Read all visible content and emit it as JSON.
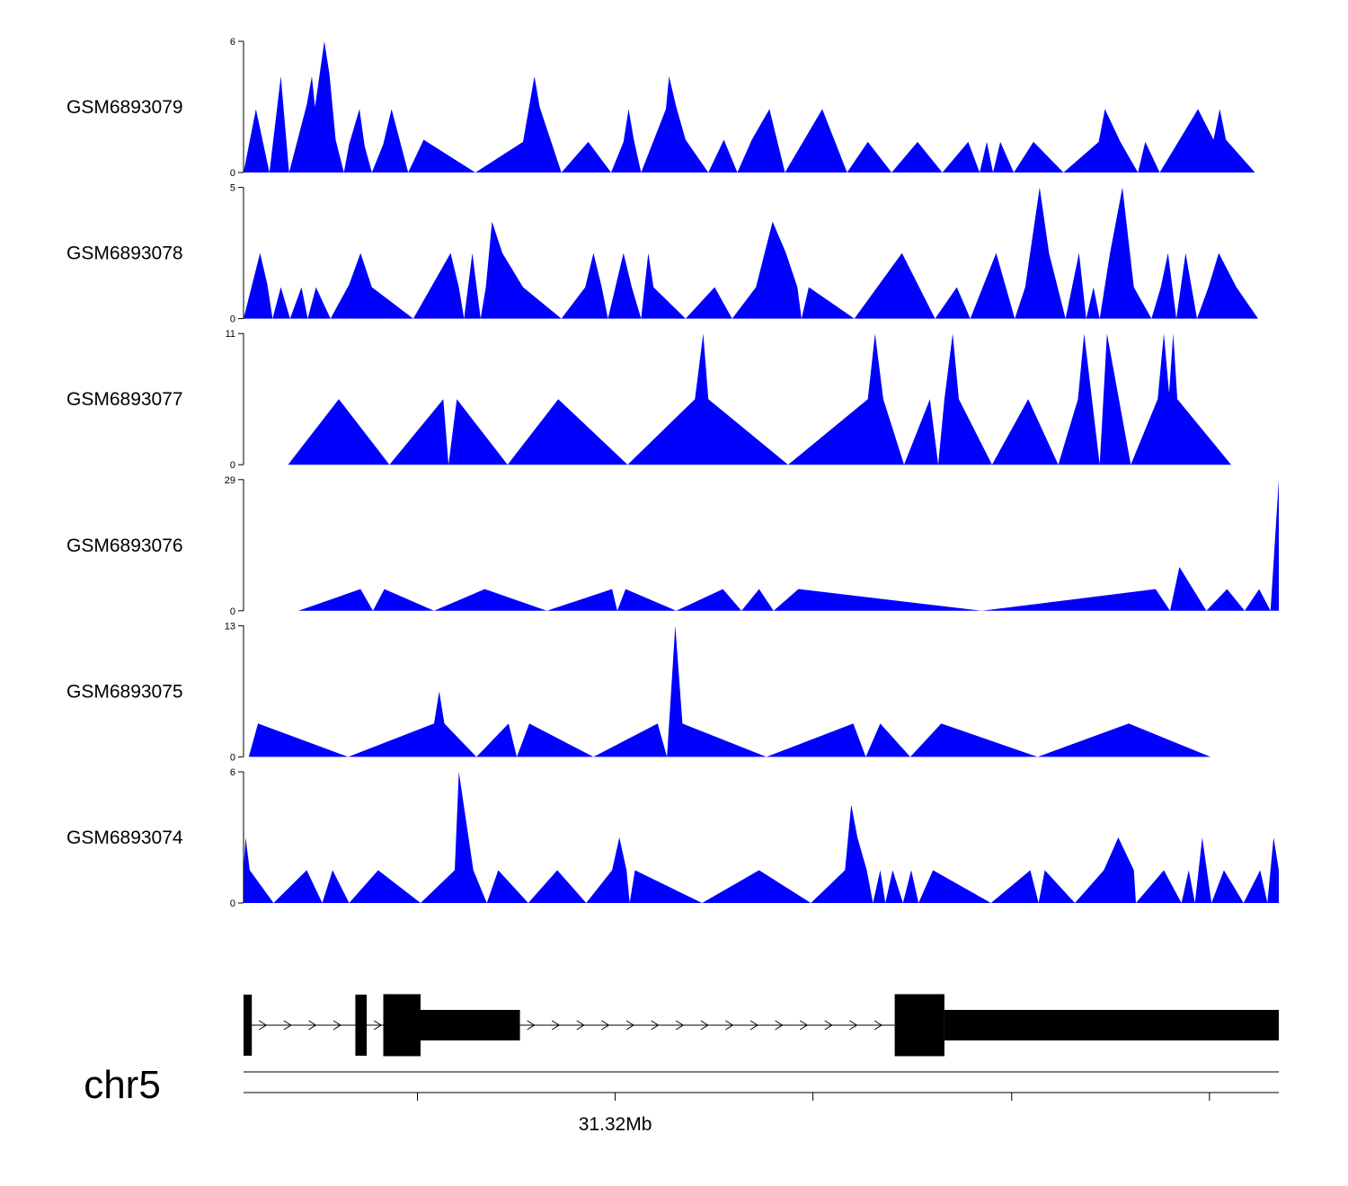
{
  "chart_data": {
    "type": "area",
    "chromosome": "chr5",
    "axis": {
      "tick_label": "31.32Mb"
    },
    "colors": {
      "coverage": "#0000ff",
      "gene_model": "#000000"
    },
    "tracks": [
      {
        "name": "GSM6893079",
        "ylim": [
          0,
          6
        ],
        "points": [
          [
            0,
            0
          ],
          [
            0.012,
            2.9
          ],
          [
            0.025,
            0
          ],
          [
            0.036,
            4.4
          ],
          [
            0.044,
            0
          ],
          [
            0.061,
            3.1
          ],
          [
            0.066,
            4.4
          ],
          [
            0.069,
            3.0
          ],
          [
            0.078,
            6.0
          ],
          [
            0.083,
            4.5
          ],
          [
            0.089,
            1.5
          ],
          [
            0.097,
            0
          ],
          [
            0.102,
            1.3
          ],
          [
            0.112,
            2.9
          ],
          [
            0.117,
            1.2
          ],
          [
            0.124,
            0
          ],
          [
            0.135,
            1.3
          ],
          [
            0.143,
            2.9
          ],
          [
            0.159,
            0
          ],
          [
            0.174,
            1.5
          ],
          [
            0.224,
            0
          ],
          [
            0.27,
            1.4
          ],
          [
            0.281,
            4.4
          ],
          [
            0.286,
            3.0
          ],
          [
            0.307,
            0
          ],
          [
            0.333,
            1.4
          ],
          [
            0.355,
            0
          ],
          [
            0.367,
            1.4
          ],
          [
            0.372,
            2.9
          ],
          [
            0.377,
            1.5
          ],
          [
            0.384,
            0
          ],
          [
            0.408,
            2.9
          ],
          [
            0.411,
            4.4
          ],
          [
            0.418,
            3.0
          ],
          [
            0.427,
            1.5
          ],
          [
            0.449,
            0
          ],
          [
            0.464,
            1.5
          ],
          [
            0.477,
            0
          ],
          [
            0.491,
            1.5
          ],
          [
            0.508,
            2.9
          ],
          [
            0.523,
            0
          ],
          [
            0.559,
            2.9
          ],
          [
            0.583,
            0
          ],
          [
            0.603,
            1.4
          ],
          [
            0.626,
            0
          ],
          [
            0.651,
            1.4
          ],
          [
            0.675,
            0
          ],
          [
            0.7,
            1.4
          ],
          [
            0.711,
            0
          ],
          [
            0.718,
            1.4
          ],
          [
            0.724,
            0
          ],
          [
            0.731,
            1.4
          ],
          [
            0.744,
            0
          ],
          [
            0.763,
            1.4
          ],
          [
            0.792,
            0
          ],
          [
            0.826,
            1.4
          ],
          [
            0.832,
            2.9
          ],
          [
            0.847,
            1.4
          ],
          [
            0.864,
            0
          ],
          [
            0.871,
            1.4
          ],
          [
            0.885,
            0
          ],
          [
            0.922,
            2.9
          ],
          [
            0.937,
            1.5
          ],
          [
            0.943,
            2.9
          ],
          [
            0.949,
            1.5
          ],
          [
            0.977,
            0
          ]
        ]
      },
      {
        "name": "GSM6893078",
        "ylim": [
          0,
          5
        ],
        "points": [
          [
            0,
            0
          ],
          [
            0.016,
            2.5
          ],
          [
            0.023,
            1.3
          ],
          [
            0.028,
            0
          ],
          [
            0.036,
            1.2
          ],
          [
            0.045,
            0
          ],
          [
            0.056,
            1.2
          ],
          [
            0.062,
            0
          ],
          [
            0.07,
            1.2
          ],
          [
            0.084,
            0
          ],
          [
            0.102,
            1.3
          ],
          [
            0.113,
            2.5
          ],
          [
            0.124,
            1.2
          ],
          [
            0.164,
            0
          ],
          [
            0.2,
            2.5
          ],
          [
            0.208,
            1.2
          ],
          [
            0.213,
            0
          ],
          [
            0.221,
            2.5
          ],
          [
            0.229,
            0
          ],
          [
            0.234,
            1.2
          ],
          [
            0.24,
            3.7
          ],
          [
            0.25,
            2.5
          ],
          [
            0.27,
            1.2
          ],
          [
            0.307,
            0
          ],
          [
            0.33,
            1.2
          ],
          [
            0.338,
            2.5
          ],
          [
            0.346,
            1.2
          ],
          [
            0.352,
            0
          ],
          [
            0.367,
            2.5
          ],
          [
            0.375,
            1.2
          ],
          [
            0.384,
            0
          ],
          [
            0.391,
            2.5
          ],
          [
            0.396,
            1.2
          ],
          [
            0.427,
            0
          ],
          [
            0.455,
            1.2
          ],
          [
            0.472,
            0
          ],
          [
            0.495,
            1.2
          ],
          [
            0.511,
            3.7
          ],
          [
            0.524,
            2.5
          ],
          [
            0.535,
            1.2
          ],
          [
            0.539,
            0
          ],
          [
            0.546,
            1.2
          ],
          [
            0.59,
            0
          ],
          [
            0.636,
            2.5
          ],
          [
            0.668,
            0
          ],
          [
            0.689,
            1.2
          ],
          [
            0.702,
            0
          ],
          [
            0.727,
            2.5
          ],
          [
            0.745,
            0
          ],
          [
            0.755,
            1.2
          ],
          [
            0.769,
            5.0
          ],
          [
            0.778,
            2.5
          ],
          [
            0.794,
            0
          ],
          [
            0.807,
            2.5
          ],
          [
            0.814,
            0
          ],
          [
            0.821,
            1.2
          ],
          [
            0.827,
            0
          ],
          [
            0.837,
            2.5
          ],
          [
            0.849,
            5.0
          ],
          [
            0.86,
            1.2
          ],
          [
            0.877,
            0
          ],
          [
            0.886,
            1.2
          ],
          [
            0.893,
            2.5
          ],
          [
            0.901,
            0
          ],
          [
            0.91,
            2.5
          ],
          [
            0.921,
            0
          ],
          [
            0.932,
            1.2
          ],
          [
            0.942,
            2.5
          ],
          [
            0.959,
            1.2
          ],
          [
            0.98,
            0
          ]
        ]
      },
      {
        "name": "GSM6893077",
        "ylim": [
          0,
          11
        ],
        "points": [
          [
            0.043,
            0
          ],
          [
            0.092,
            5.5
          ],
          [
            0.141,
            0
          ],
          [
            0.193,
            5.5
          ],
          [
            0.198,
            0
          ],
          [
            0.206,
            5.5
          ],
          [
            0.255,
            0
          ],
          [
            0.304,
            5.5
          ],
          [
            0.371,
            0
          ],
          [
            0.436,
            5.5
          ],
          [
            0.444,
            11.0
          ],
          [
            0.449,
            5.5
          ],
          [
            0.526,
            0
          ],
          [
            0.603,
            5.5
          ],
          [
            0.61,
            11.0
          ],
          [
            0.618,
            5.5
          ],
          [
            0.638,
            0
          ],
          [
            0.663,
            5.5
          ],
          [
            0.671,
            0
          ],
          [
            0.677,
            5.5
          ],
          [
            0.685,
            11.0
          ],
          [
            0.691,
            5.5
          ],
          [
            0.723,
            0
          ],
          [
            0.758,
            5.5
          ],
          [
            0.787,
            0
          ],
          [
            0.806,
            5.5
          ],
          [
            0.812,
            11.0
          ],
          [
            0.827,
            0
          ],
          [
            0.834,
            11.0
          ],
          [
            0.857,
            0
          ],
          [
            0.883,
            5.5
          ],
          [
            0.889,
            11.0
          ],
          [
            0.894,
            6.0
          ],
          [
            0.898,
            11.0
          ],
          [
            0.902,
            5.5
          ],
          [
            0.954,
            0
          ]
        ]
      },
      {
        "name": "GSM6893076",
        "ylim": [
          0,
          29
        ],
        "points": [
          [
            0.053,
            0
          ],
          [
            0.113,
            4.8
          ],
          [
            0.125,
            0
          ],
          [
            0.136,
            4.8
          ],
          [
            0.184,
            0
          ],
          [
            0.233,
            4.8
          ],
          [
            0.293,
            0
          ],
          [
            0.356,
            4.8
          ],
          [
            0.361,
            0
          ],
          [
            0.369,
            4.8
          ],
          [
            0.418,
            0
          ],
          [
            0.463,
            4.8
          ],
          [
            0.481,
            0
          ],
          [
            0.498,
            4.8
          ],
          [
            0.512,
            0
          ],
          [
            0.536,
            4.8
          ],
          [
            0.713,
            0
          ],
          [
            0.881,
            4.8
          ],
          [
            0.895,
            0
          ],
          [
            0.904,
            9.7
          ],
          [
            0.93,
            0
          ],
          [
            0.95,
            4.8
          ],
          [
            0.967,
            0
          ],
          [
            0.981,
            4.8
          ],
          [
            0.992,
            0
          ],
          [
            1.0,
            29.0
          ],
          [
            1.0,
            0
          ]
        ]
      },
      {
        "name": "GSM6893075",
        "ylim": [
          0,
          13
        ],
        "points": [
          [
            0.005,
            0
          ],
          [
            0.014,
            3.3
          ],
          [
            0.101,
            0
          ],
          [
            0.184,
            3.3
          ],
          [
            0.189,
            6.5
          ],
          [
            0.194,
            3.3
          ],
          [
            0.225,
            0
          ],
          [
            0.256,
            3.3
          ],
          [
            0.264,
            0
          ],
          [
            0.276,
            3.3
          ],
          [
            0.338,
            0
          ],
          [
            0.4,
            3.3
          ],
          [
            0.409,
            0
          ],
          [
            0.417,
            13.0
          ],
          [
            0.424,
            3.3
          ],
          [
            0.505,
            0
          ],
          [
            0.589,
            3.3
          ],
          [
            0.601,
            0
          ],
          [
            0.615,
            3.3
          ],
          [
            0.644,
            0
          ],
          [
            0.674,
            3.3
          ],
          [
            0.767,
            0
          ],
          [
            0.855,
            3.3
          ],
          [
            0.934,
            0
          ]
        ]
      },
      {
        "name": "GSM6893074",
        "ylim": [
          0,
          6
        ],
        "points": [
          [
            0,
            0
          ],
          [
            0,
            1.5
          ],
          [
            0.002,
            3.0
          ],
          [
            0.006,
            1.5
          ],
          [
            0.029,
            0
          ],
          [
            0.061,
            1.5
          ],
          [
            0.076,
            0
          ],
          [
            0.086,
            1.5
          ],
          [
            0.102,
            0
          ],
          [
            0.13,
            1.5
          ],
          [
            0.171,
            0
          ],
          [
            0.204,
            1.5
          ],
          [
            0.208,
            6.0
          ],
          [
            0.222,
            1.5
          ],
          [
            0.235,
            0
          ],
          [
            0.246,
            1.5
          ],
          [
            0.275,
            0
          ],
          [
            0.303,
            1.5
          ],
          [
            0.331,
            0
          ],
          [
            0.356,
            1.5
          ],
          [
            0.363,
            3.0
          ],
          [
            0.37,
            1.5
          ],
          [
            0.373,
            0
          ],
          [
            0.378,
            1.5
          ],
          [
            0.443,
            0
          ],
          [
            0.498,
            1.5
          ],
          [
            0.548,
            0
          ],
          [
            0.581,
            1.5
          ],
          [
            0.587,
            4.5
          ],
          [
            0.593,
            3.0
          ],
          [
            0.602,
            1.5
          ],
          [
            0.608,
            0
          ],
          [
            0.615,
            1.5
          ],
          [
            0.62,
            0
          ],
          [
            0.627,
            1.5
          ],
          [
            0.637,
            0
          ],
          [
            0.645,
            1.5
          ],
          [
            0.652,
            0
          ],
          [
            0.666,
            1.5
          ],
          [
            0.722,
            0
          ],
          [
            0.76,
            1.5
          ],
          [
            0.768,
            0
          ],
          [
            0.774,
            1.5
          ],
          [
            0.803,
            0
          ],
          [
            0.831,
            1.5
          ],
          [
            0.845,
            3.0
          ],
          [
            0.86,
            1.5
          ],
          [
            0.862,
            0
          ],
          [
            0.889,
            1.5
          ],
          [
            0.906,
            0
          ],
          [
            0.913,
            1.5
          ],
          [
            0.919,
            0
          ],
          [
            0.926,
            3.0
          ],
          [
            0.935,
            0
          ],
          [
            0.947,
            1.5
          ],
          [
            0.966,
            0
          ],
          [
            0.982,
            1.5
          ],
          [
            0.989,
            0
          ],
          [
            0.995,
            3.0
          ],
          [
            1.0,
            1.5
          ],
          [
            1.0,
            0
          ]
        ]
      }
    ],
    "gene_model": {
      "exons": [
        [
          0.0,
          0.008,
          "narrow"
        ],
        [
          0.108,
          0.119,
          "narrow"
        ],
        [
          0.135,
          0.171,
          "wide"
        ],
        [
          0.171,
          0.267,
          "utr"
        ],
        [
          0.629,
          0.677,
          "wide"
        ],
        [
          0.677,
          1.0,
          "utr"
        ]
      ],
      "introns": [
        [
          0.008,
          0.108
        ],
        [
          0.119,
          0.135
        ],
        [
          0.267,
          0.629
        ]
      ]
    },
    "ruler": {
      "ticks": [
        0.168,
        0.359,
        0.55,
        0.742,
        0.933
      ],
      "labeled_tick_index": 1
    }
  }
}
